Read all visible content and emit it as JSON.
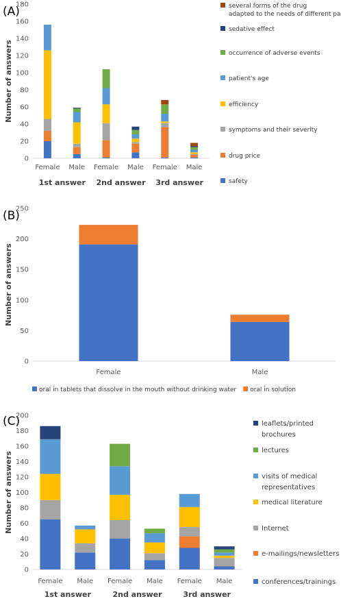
{
  "colors": {
    "safety": "#4472c4",
    "drug_price": "#ed7d31",
    "symptoms": "#a5a5a5",
    "efficiency": "#ffc000",
    "patients_age": "#5b9bd5",
    "adverse": "#70ad47",
    "sedative": "#264478",
    "several_forms": "#9e480e"
  },
  "chart_data": [
    {
      "panel": "(A)",
      "type": "bar",
      "stacked": true,
      "ylabel": "Number of answers",
      "ylim": [
        0,
        180
      ],
      "yticks": [
        0,
        20,
        40,
        60,
        80,
        100,
        120,
        140,
        160,
        180
      ],
      "categories": [
        "Female",
        "Male",
        "Female",
        "Male",
        "Female",
        "Male"
      ],
      "groups": [
        "1st answer",
        "2nd answer",
        "3rd answer"
      ],
      "legend_position": "right",
      "series": [
        {
          "name": "safety",
          "color": "#4472c4",
          "values": [
            20,
            5,
            1,
            7,
            1,
            1
          ]
        },
        {
          "name": "drug price",
          "color": "#ed7d31",
          "values": [
            12,
            8,
            20,
            10,
            35,
            3
          ]
        },
        {
          "name": "symptoms and their severity",
          "color": "#a5a5a5",
          "values": [
            14,
            4,
            20,
            2,
            5,
            1
          ]
        },
        {
          "name": "efficiency",
          "color": "#ffc000",
          "values": [
            80,
            25,
            22,
            4,
            2,
            2
          ]
        },
        {
          "name": "patient's age",
          "color": "#5b9bd5",
          "values": [
            30,
            12,
            19,
            5,
            9,
            3
          ]
        },
        {
          "name": "occurrence of adverse events",
          "color": "#70ad47",
          "values": [
            0,
            4,
            22,
            5,
            11,
            3
          ]
        },
        {
          "name": "sedative effect",
          "color": "#264478",
          "values": [
            0,
            1,
            0,
            4,
            0,
            1
          ]
        },
        {
          "name": "several forms of the drug adapted to the needs of different patients",
          "color": "#9e480e",
          "values": [
            0,
            0,
            0,
            0,
            5,
            4
          ]
        }
      ]
    },
    {
      "panel": "(B)",
      "type": "bar",
      "stacked": true,
      "ylabel": "Number of answers",
      "ylim": [
        0,
        250
      ],
      "yticks": [
        0,
        50,
        100,
        150,
        200,
        250
      ],
      "categories": [
        "Female",
        "Male"
      ],
      "legend_position": "bottom",
      "series": [
        {
          "name": "oral in tablets that dissolve in the mouth without drinking water",
          "color": "#4472c4",
          "values": [
            191,
            64
          ]
        },
        {
          "name": "oral in solution",
          "color": "#ed7d31",
          "values": [
            32,
            12
          ]
        }
      ]
    },
    {
      "panel": "(C)",
      "type": "bar",
      "stacked": true,
      "ylabel": "Number of answers",
      "ylim": [
        0,
        200
      ],
      "yticks": [
        0,
        20,
        40,
        60,
        80,
        100,
        120,
        140,
        160,
        180,
        200
      ],
      "categories": [
        "Female",
        "Male",
        "Female",
        "Male",
        "Female",
        "Male"
      ],
      "groups": [
        "1st answer",
        "2nd answer",
        "3rd answer"
      ],
      "legend_position": "right",
      "series": [
        {
          "name": "conferences/trainings",
          "color": "#4472c4",
          "values": [
            65,
            22,
            40,
            12,
            28,
            4
          ]
        },
        {
          "name": "e-mailings/newsletters",
          "color": "#ed7d31",
          "values": [
            0,
            0,
            0,
            0,
            15,
            0
          ]
        },
        {
          "name": "Internet",
          "color": "#a5a5a5",
          "values": [
            25,
            12,
            24,
            9,
            12,
            11
          ]
        },
        {
          "name": "medical literature",
          "color": "#ffc000",
          "values": [
            34,
            18,
            33,
            14,
            26,
            3
          ]
        },
        {
          "name": "visits of medical representatives",
          "color": "#5b9bd5",
          "values": [
            45,
            5,
            37,
            12,
            17,
            4
          ]
        },
        {
          "name": "lectures",
          "color": "#70ad47",
          "values": [
            0,
            0,
            29,
            6,
            0,
            4
          ]
        },
        {
          "name": "leaflets/printed brochures",
          "color": "#264478",
          "values": [
            17,
            0,
            0,
            0,
            0,
            4
          ]
        }
      ]
    }
  ]
}
